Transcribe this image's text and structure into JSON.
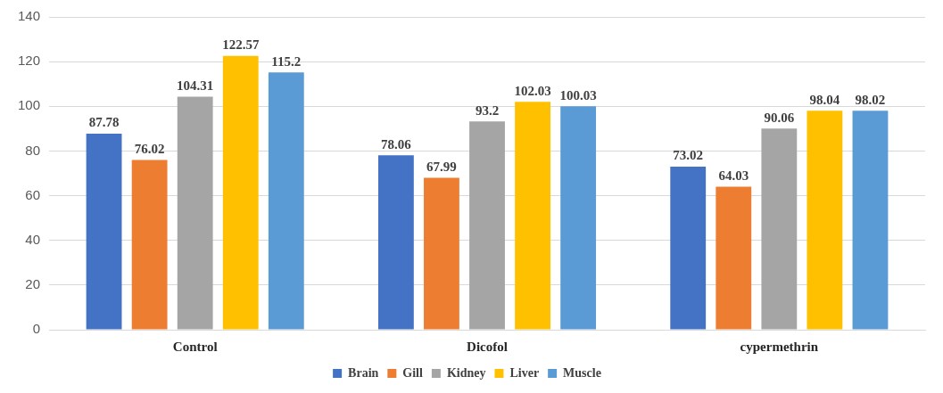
{
  "chart_data": {
    "type": "bar",
    "categories": [
      "Control",
      "Dicofol",
      "cypermethrin"
    ],
    "series": [
      {
        "name": "Brain",
        "color": "#4472c4",
        "values": [
          87.78,
          78.06,
          73.02
        ]
      },
      {
        "name": "Gill",
        "color": "#ed7d31",
        "values": [
          76.02,
          67.99,
          64.03
        ]
      },
      {
        "name": "Kidney",
        "color": "#a5a5a5",
        "values": [
          104.31,
          93.2,
          90.06
        ]
      },
      {
        "name": "Liver",
        "color": "#ffc000",
        "values": [
          122.57,
          102.03,
          98.04
        ]
      },
      {
        "name": "Muscle",
        "color": "#5b9bd5",
        "values": [
          115.2,
          100.03,
          98.02
        ]
      }
    ],
    "ylim": [
      0,
      140
    ],
    "yticks": [
      0,
      20,
      40,
      60,
      80,
      100,
      120,
      140
    ],
    "grid": "y",
    "legend": "bottom",
    "data_labels": true
  }
}
